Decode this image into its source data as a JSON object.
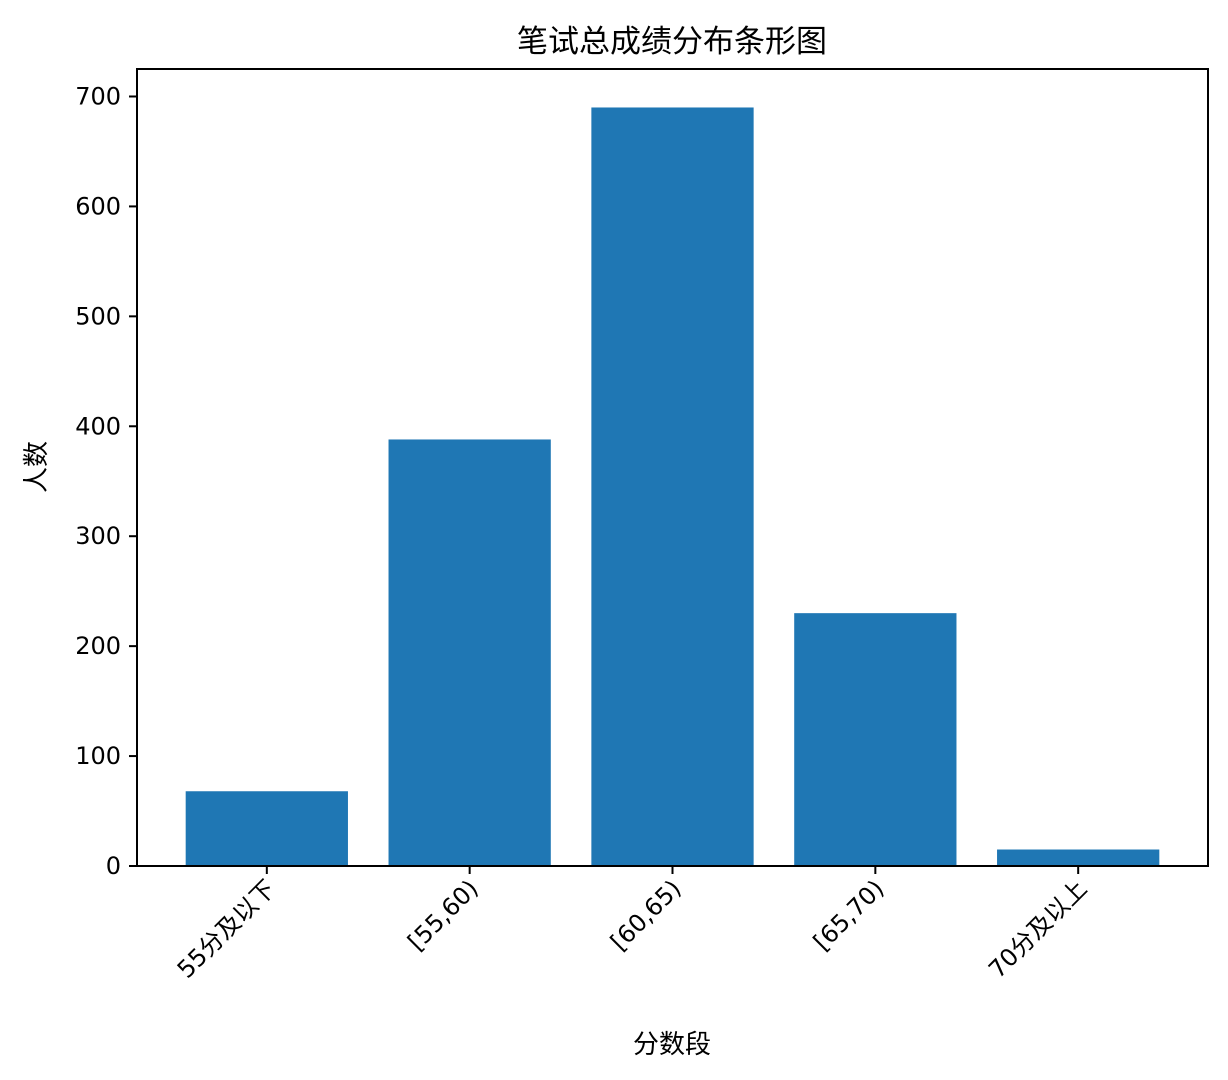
{
  "chart_data": {
    "type": "bar",
    "title": "笔试总成绩分布条形图",
    "xlabel": "分数段",
    "ylabel": "人数",
    "categories": [
      "55分及以下",
      "[55,60)",
      "[60,65)",
      "[65,70)",
      "70分及以上"
    ],
    "values": [
      68,
      388,
      690,
      230,
      15
    ],
    "ylim": [
      0,
      725
    ],
    "yticks": [
      0,
      100,
      200,
      300,
      400,
      500,
      600,
      700
    ],
    "bar_color": "#1f77b4",
    "grid": false,
    "x_tick_rotation_deg": 45
  }
}
